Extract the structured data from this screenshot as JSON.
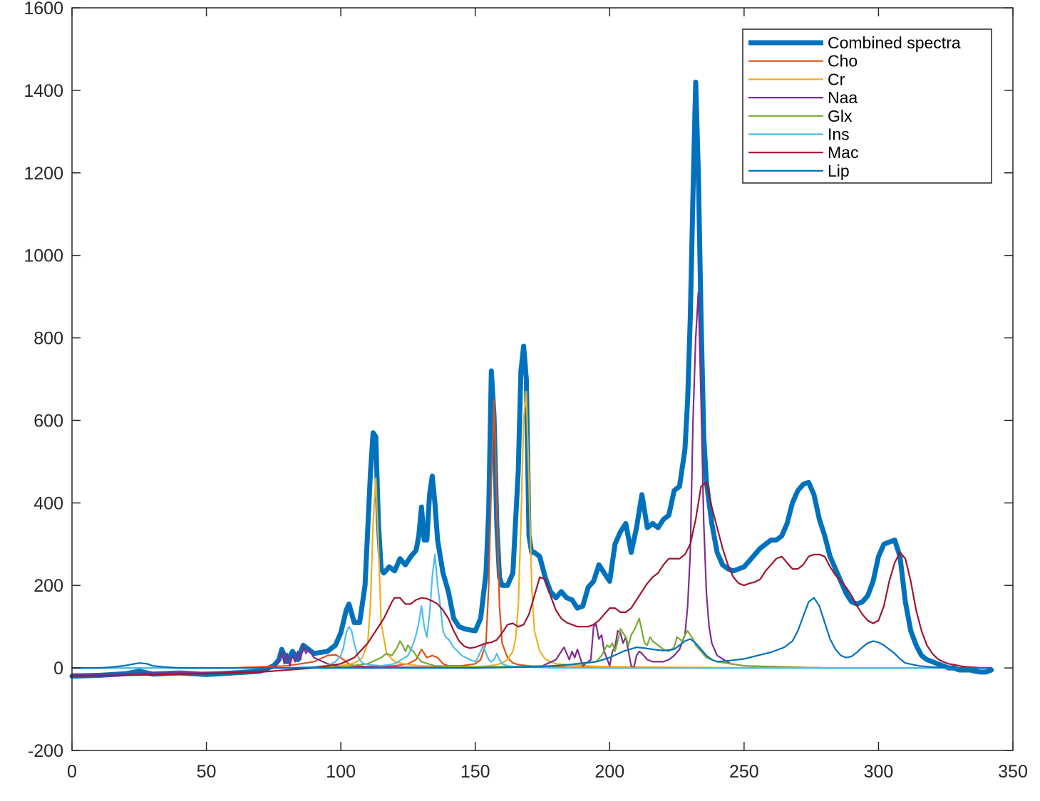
{
  "chart_data": {
    "type": "line",
    "title": "",
    "xlabel": "",
    "ylabel": "",
    "xlim": [
      0,
      350
    ],
    "ylim": [
      -200,
      1600
    ],
    "xticks": [
      0,
      50,
      100,
      150,
      200,
      250,
      300,
      350
    ],
    "yticks": [
      -200,
      0,
      200,
      400,
      600,
      800,
      1000,
      1200,
      1400,
      1600
    ],
    "xtick_labels": [
      "0",
      "50",
      "100",
      "150",
      "200",
      "250",
      "300",
      "350"
    ],
    "ytick_labels": [
      "-200",
      "0",
      "200",
      "400",
      "600",
      "800",
      "1000",
      "1200",
      "1400",
      "1600"
    ],
    "grid": false,
    "legend_position": "top-right",
    "series": [
      {
        "name": "Combined spectra",
        "color": "#0072BD",
        "x": [
          0,
          10,
          20,
          25,
          30,
          40,
          50,
          60,
          70,
          75,
          77,
          78,
          80,
          82,
          84,
          86,
          88,
          90,
          95,
          98,
          100,
          102,
          103,
          105,
          107,
          109,
          111,
          112,
          113,
          114,
          115,
          116,
          118,
          120,
          122,
          124,
          126,
          128,
          129,
          130,
          131,
          132,
          133,
          134,
          135,
          136,
          138,
          140,
          142,
          144,
          146,
          148,
          150,
          152,
          154,
          155,
          156,
          157,
          158,
          159,
          160,
          162,
          164,
          166,
          167,
          168,
          169,
          170,
          171,
          172,
          174,
          176,
          178,
          180,
          182,
          184,
          186,
          188,
          190,
          192,
          194,
          196,
          198,
          200,
          202,
          204,
          206,
          208,
          210,
          212,
          214,
          216,
          218,
          220,
          222,
          224,
          226,
          228,
          229,
          230,
          231,
          232,
          233,
          234,
          235,
          236,
          238,
          240,
          242,
          244,
          246,
          248,
          250,
          252,
          254,
          256,
          258,
          260,
          262,
          264,
          266,
          268,
          270,
          272,
          274,
          276,
          278,
          280,
          282,
          284,
          286,
          288,
          290,
          292,
          294,
          296,
          298,
          300,
          302,
          304,
          306,
          308,
          310,
          312,
          314,
          316,
          318,
          320,
          322,
          324,
          326,
          328,
          330,
          332,
          334,
          336,
          338,
          340,
          342
        ],
        "values": [
          -20,
          -18,
          -14,
          -8,
          -15,
          -12,
          -16,
          -12,
          -8,
          5,
          20,
          45,
          15,
          40,
          20,
          55,
          45,
          35,
          40,
          55,
          85,
          140,
          155,
          110,
          110,
          200,
          470,
          570,
          560,
          350,
          240,
          230,
          245,
          235,
          265,
          250,
          270,
          285,
          320,
          390,
          310,
          310,
          420,
          465,
          400,
          310,
          230,
          185,
          120,
          100,
          95,
          92,
          90,
          120,
          230,
          380,
          720,
          610,
          350,
          220,
          200,
          200,
          230,
          480,
          720,
          780,
          700,
          320,
          280,
          280,
          270,
          220,
          185,
          170,
          185,
          170,
          165,
          145,
          150,
          195,
          210,
          250,
          230,
          210,
          300,
          330,
          350,
          280,
          340,
          420,
          340,
          350,
          340,
          360,
          370,
          430,
          440,
          530,
          650,
          850,
          1150,
          1420,
          1200,
          850,
          560,
          450,
          350,
          280,
          250,
          240,
          235,
          240,
          245,
          260,
          275,
          290,
          300,
          310,
          310,
          320,
          350,
          400,
          430,
          445,
          450,
          420,
          360,
          320,
          270,
          240,
          210,
          180,
          160,
          155,
          160,
          175,
          210,
          270,
          300,
          305,
          310,
          270,
          160,
          90,
          55,
          30,
          20,
          15,
          10,
          5,
          0,
          0,
          -5,
          -5,
          -5,
          -8,
          -10,
          -10,
          -5
        ]
      },
      {
        "name": "Cho",
        "color": "#D95319",
        "x": [
          0,
          20,
          40,
          60,
          80,
          90,
          95,
          98,
          100,
          103,
          105,
          110,
          115,
          120,
          125,
          128,
          130,
          132,
          134,
          136,
          138,
          140,
          145,
          150,
          152,
          154,
          155,
          156,
          157,
          158,
          159,
          160,
          162,
          164,
          166,
          170,
          175,
          180,
          190,
          200,
          220,
          250,
          300,
          342
        ],
        "values": [
          0,
          0,
          0,
          0,
          5,
          15,
          30,
          32,
          25,
          10,
          5,
          3,
          3,
          5,
          10,
          20,
          45,
          25,
          30,
          25,
          10,
          5,
          5,
          10,
          20,
          60,
          200,
          450,
          650,
          400,
          150,
          60,
          25,
          12,
          8,
          5,
          3,
          2,
          1,
          0,
          0,
          0,
          0,
          0
        ]
      },
      {
        "name": "Cr",
        "color": "#EDB120",
        "x": [
          0,
          40,
          80,
          95,
          100,
          104,
          106,
          108,
          110,
          111,
          112,
          113,
          114,
          115,
          117,
          120,
          125,
          130,
          140,
          150,
          155,
          158,
          160,
          162,
          164,
          165,
          166,
          167,
          168,
          169,
          170,
          171,
          172,
          174,
          176,
          178,
          180,
          190,
          200,
          250,
          342
        ],
        "values": [
          0,
          0,
          0,
          2,
          5,
          10,
          15,
          25,
          60,
          150,
          350,
          460,
          300,
          110,
          35,
          15,
          8,
          5,
          3,
          3,
          5,
          8,
          12,
          20,
          40,
          70,
          150,
          350,
          600,
          670,
          450,
          200,
          90,
          40,
          22,
          15,
          10,
          5,
          3,
          0,
          0
        ]
      },
      {
        "name": "Naa",
        "color": "#7E2F8E",
        "x": [
          0,
          40,
          70,
          75,
          77,
          78,
          79,
          80,
          81,
          82,
          83,
          84,
          85,
          86,
          87,
          88,
          90,
          95,
          100,
          150,
          175,
          180,
          183,
          185,
          186,
          187,
          188,
          190,
          193,
          194,
          195,
          196,
          197,
          198,
          200,
          201,
          202,
          203,
          204,
          205,
          206,
          207,
          208,
          209,
          210,
          211,
          212,
          214,
          216,
          218,
          220,
          222,
          224,
          226,
          228,
          229,
          230,
          231,
          232,
          233,
          234,
          235,
          236,
          237,
          238,
          240,
          245,
          250,
          260,
          280,
          342
        ],
        "values": [
          -15,
          -12,
          -8,
          0,
          15,
          40,
          10,
          35,
          5,
          30,
          15,
          40,
          20,
          55,
          35,
          45,
          25,
          10,
          3,
          0,
          5,
          20,
          50,
          20,
          40,
          25,
          45,
          5,
          20,
          100,
          105,
          70,
          80,
          40,
          5,
          40,
          50,
          90,
          85,
          60,
          75,
          40,
          5,
          0,
          30,
          40,
          35,
          20,
          15,
          15,
          15,
          20,
          30,
          45,
          80,
          150,
          280,
          600,
          800,
          910,
          650,
          350,
          180,
          100,
          60,
          30,
          10,
          5,
          3,
          0,
          0
        ]
      },
      {
        "name": "Glx",
        "color": "#77AC30",
        "x": [
          0,
          80,
          100,
          110,
          115,
          117,
          119,
          120,
          121,
          122,
          123,
          124,
          125,
          126,
          127,
          128,
          130,
          135,
          150,
          180,
          190,
          195,
          197,
          199,
          200,
          201,
          202,
          203,
          204,
          205,
          206,
          207,
          208,
          209,
          210,
          211,
          212,
          213,
          214,
          215,
          216,
          218,
          220,
          222,
          224,
          225,
          226,
          227,
          228,
          229,
          230,
          231,
          232,
          234,
          236,
          240,
          250,
          260,
          280,
          342
        ],
        "values": [
          0,
          0,
          2,
          10,
          25,
          35,
          30,
          40,
          50,
          65,
          55,
          40,
          55,
          45,
          40,
          30,
          15,
          5,
          2,
          5,
          10,
          15,
          30,
          55,
          50,
          60,
          40,
          65,
          95,
          85,
          75,
          55,
          80,
          90,
          105,
          120,
          90,
          60,
          55,
          75,
          65,
          55,
          45,
          40,
          50,
          75,
          70,
          65,
          80,
          90,
          80,
          70,
          55,
          40,
          25,
          15,
          5,
          2,
          0,
          0
        ]
      },
      {
        "name": "Ins",
        "color": "#4DBEEE",
        "x": [
          0,
          50,
          80,
          95,
          98,
          100,
          101,
          102,
          103,
          104,
          105,
          106,
          107,
          108,
          110,
          115,
          120,
          125,
          127,
          128,
          129,
          130,
          131,
          132,
          133,
          134,
          135,
          136,
          137,
          138,
          139,
          140,
          142,
          145,
          148,
          150,
          151,
          152,
          153,
          154,
          155,
          156,
          157,
          158,
          159,
          160,
          162,
          165,
          170,
          180,
          200,
          250,
          300,
          342
        ],
        "values": [
          0,
          0,
          0,
          5,
          15,
          30,
          50,
          85,
          100,
          90,
          60,
          35,
          20,
          12,
          8,
          5,
          10,
          30,
          60,
          80,
          110,
          150,
          100,
          75,
          130,
          220,
          275,
          200,
          150,
          90,
          75,
          70,
          50,
          30,
          20,
          15,
          25,
          40,
          55,
          35,
          20,
          15,
          20,
          35,
          20,
          10,
          5,
          3,
          2,
          0,
          0,
          0,
          0,
          0
        ]
      },
      {
        "name": "Mac",
        "color": "#A2142F",
        "x": [
          0,
          20,
          40,
          60,
          70,
          80,
          90,
          95,
          100,
          105,
          110,
          113,
          116,
          119,
          120,
          122,
          124,
          126,
          128,
          130,
          132,
          134,
          136,
          138,
          140,
          142,
          144,
          146,
          148,
          150,
          152,
          154,
          156,
          158,
          160,
          162,
          164,
          166,
          168,
          170,
          172,
          174,
          176,
          178,
          180,
          182,
          184,
          186,
          188,
          190,
          192,
          194,
          196,
          198,
          200,
          202,
          204,
          206,
          208,
          210,
          212,
          214,
          216,
          218,
          220,
          222,
          224,
          226,
          228,
          230,
          232,
          234,
          236,
          238,
          240,
          242,
          244,
          246,
          248,
          250,
          252,
          254,
          256,
          258,
          260,
          262,
          264,
          266,
          268,
          270,
          272,
          274,
          276,
          278,
          280,
          282,
          284,
          286,
          288,
          290,
          292,
          294,
          296,
          298,
          300,
          302,
          304,
          306,
          308,
          310,
          312,
          314,
          316,
          318,
          320,
          322,
          324,
          326,
          328,
          330,
          332,
          334,
          336,
          338,
          340,
          342
        ],
        "values": [
          -20,
          -18,
          -15,
          -12,
          -10,
          -5,
          0,
          5,
          10,
          25,
          60,
          90,
          120,
          160,
          170,
          170,
          155,
          155,
          165,
          170,
          168,
          162,
          155,
          140,
          120,
          90,
          65,
          52,
          48,
          50,
          55,
          60,
          62,
          68,
          85,
          105,
          108,
          100,
          105,
          130,
          175,
          220,
          215,
          175,
          140,
          120,
          110,
          105,
          100,
          100,
          100,
          105,
          115,
          130,
          145,
          145,
          135,
          135,
          145,
          165,
          185,
          205,
          220,
          230,
          250,
          265,
          265,
          265,
          275,
          300,
          360,
          440,
          450,
          390,
          340,
          290,
          250,
          220,
          205,
          200,
          205,
          208,
          215,
          235,
          250,
          265,
          270,
          255,
          240,
          240,
          250,
          270,
          275,
          275,
          270,
          245,
          225,
          210,
          195,
          175,
          150,
          130,
          115,
          108,
          115,
          150,
          210,
          255,
          280,
          265,
          210,
          140,
          90,
          55,
          35,
          22,
          15,
          10,
          8,
          5,
          3,
          2,
          1,
          0,
          0,
          0
        ]
      },
      {
        "name": "Lip",
        "color": "#0072BD",
        "x": [
          0,
          10,
          15,
          20,
          25,
          28,
          30,
          35,
          40,
          60,
          80,
          100,
          150,
          175,
          185,
          190,
          195,
          200,
          205,
          210,
          213,
          216,
          220,
          224,
          226,
          228,
          230,
          232,
          234,
          236,
          238,
          240,
          245,
          250,
          255,
          260,
          265,
          268,
          270,
          272,
          274,
          276,
          278,
          280,
          282,
          284,
          286,
          288,
          290,
          292,
          294,
          296,
          298,
          300,
          302,
          304,
          306,
          308,
          310,
          315,
          320,
          330,
          342
        ],
        "values": [
          0,
          0,
          2,
          6,
          12,
          10,
          5,
          2,
          0,
          0,
          0,
          0,
          0,
          3,
          8,
          12,
          15,
          25,
          40,
          50,
          48,
          45,
          42,
          45,
          55,
          65,
          70,
          60,
          45,
          30,
          20,
          15,
          18,
          22,
          30,
          38,
          50,
          65,
          90,
          125,
          160,
          170,
          150,
          110,
          70,
          45,
          30,
          25,
          28,
          38,
          50,
          60,
          65,
          62,
          55,
          45,
          35,
          22,
          12,
          5,
          2,
          0,
          0
        ]
      }
    ]
  }
}
